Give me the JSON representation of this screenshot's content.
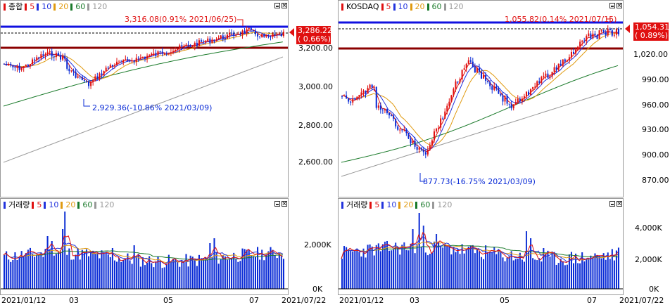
{
  "colors": {
    "up": "#e01010",
    "down": "#0a2bd6",
    "ma5": "#e01010",
    "ma10": "#2233dd",
    "ma20": "#e09a10",
    "ma60": "#1a7a2a",
    "ma120": "#999999",
    "hline_blue": "#1010e0",
    "hline_red": "#8b0000"
  },
  "left": {
    "legend": {
      "name": "종합",
      "ma5": "5",
      "ma10": "10",
      "ma20": "20",
      "ma60": "60",
      "ma120": "120"
    },
    "price_tag": {
      "value": "3,286.22",
      "change": "( 0.66%)"
    },
    "high_annotation": "3,316.08(0.91% 2021/06/25)",
    "low_annotation": "2,929.36(-10.86% 2021/03/09)",
    "y_ticks": [
      "3,200.00",
      "3,000.00",
      "2,800.00",
      "2,600.00"
    ],
    "volume_legend": {
      "name": "거래량",
      "ma5": "5",
      "ma10": "10",
      "ma20": "20",
      "ma60": "60",
      "ma120": "120"
    },
    "volume_ticks": [
      "2,000K",
      "0K"
    ],
    "x_dates": [
      "2021/01/12",
      "03",
      "05",
      "07",
      "2021/07/22"
    ]
  },
  "right": {
    "legend": {
      "name": "KOSDAQ",
      "ma5": "5",
      "ma10": "10",
      "ma20": "20",
      "ma60": "60",
      "ma120": "120"
    },
    "price_tag": {
      "value": "1,054.31",
      "change": "( 0.89%)"
    },
    "high_annotation": "1,055.82(0.14% 2021/07/15)",
    "low_annotation": "877.73(-16.75% 2021/03/09)",
    "y_ticks": [
      "1,020.00",
      "990.00",
      "960.00",
      "930.00",
      "900.00",
      "870.00"
    ],
    "volume_legend": {
      "name": "거래량",
      "ma5": "5",
      "ma10": "10",
      "ma20": "20",
      "ma60": "60",
      "ma120": "120"
    },
    "volume_ticks": [
      "4,000K",
      "2,000K",
      "0K"
    ],
    "x_dates": [
      "2021/01/12",
      "03",
      "05",
      "07",
      "2021/07/22"
    ]
  }
}
